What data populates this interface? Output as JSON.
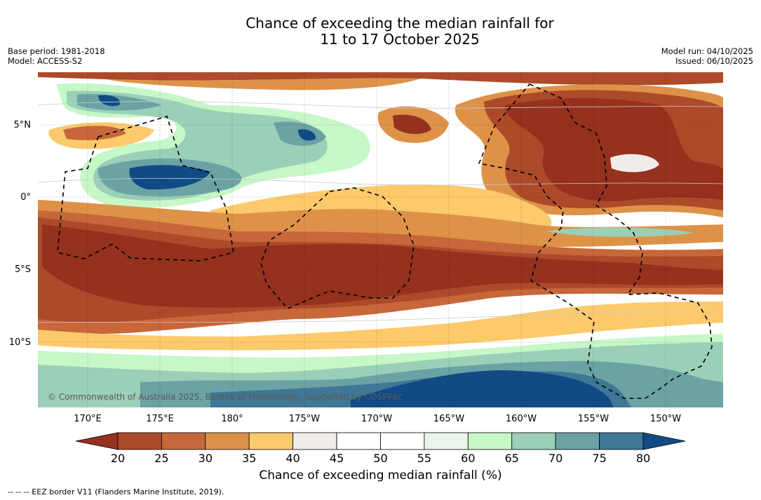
{
  "title": {
    "line1": "Chance of exceeding the median rainfall for",
    "line2": "11 to 17 October 2025"
  },
  "meta_left": {
    "base_period": "Base period: 1981-2018",
    "model": "Model: ACCESS-S2"
  },
  "meta_right": {
    "model_run": "Model run: 04/10/2025",
    "issued": "Issued: 06/10/2025"
  },
  "lat_labels": [
    "5°N",
    "0°",
    "5°S",
    "10°S"
  ],
  "lon_labels": [
    "170°E",
    "175°E",
    "180°",
    "175°W",
    "170°W",
    "165°W",
    "160°W",
    "155°W",
    "150°W"
  ],
  "colorbar": {
    "ticks": [
      "20",
      "25",
      "30",
      "35",
      "40",
      "45",
      "50",
      "55",
      "60",
      "65",
      "70",
      "75",
      "80"
    ],
    "colors": [
      "#95311e",
      "#ad4a2a",
      "#c7673a",
      "#de9248",
      "#fcc96b",
      "#f0ecea",
      "#ffffff",
      "#ffffff",
      "#eaf4ea",
      "#c6f7c7",
      "#9bcfb8",
      "#6ba2a4",
      "#3f7896",
      "#114b85"
    ],
    "label": "Chance of exceeding median rainfall (%)"
  },
  "copyright": "© Commonwealth of Australia 2025, Bureau of Meteorology, supported by COSPPac",
  "footer": "--  --  -- EEZ border V11 (Flanders Marine Institute, 2019)."
}
